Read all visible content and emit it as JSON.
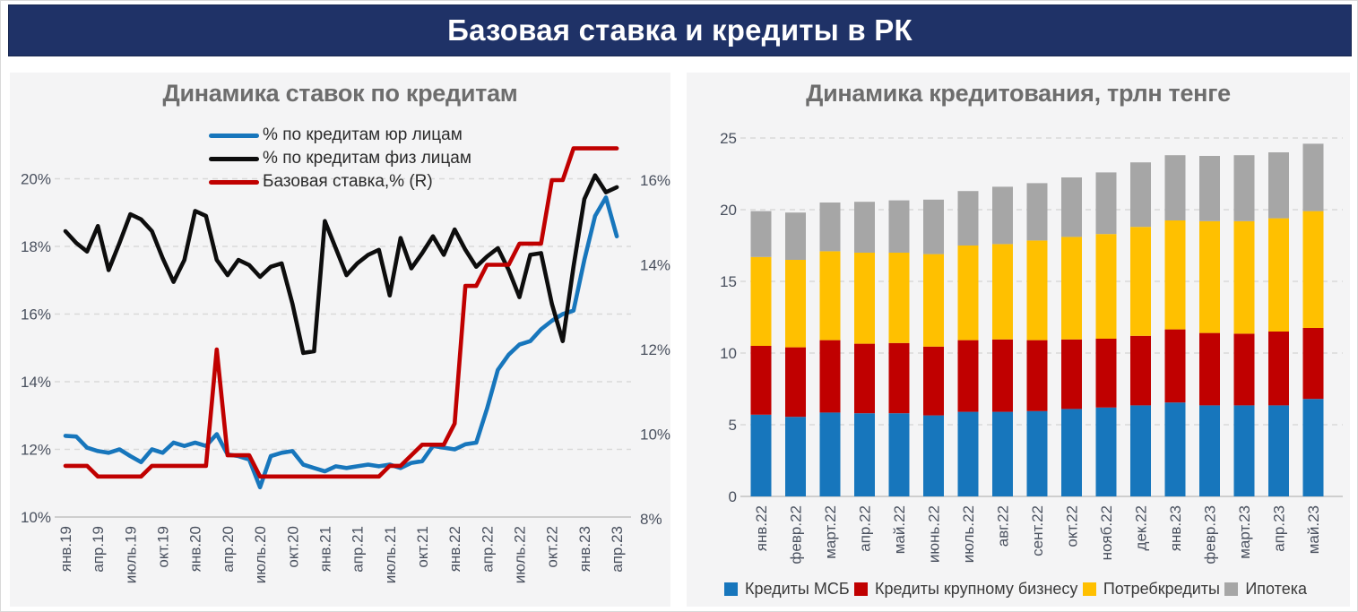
{
  "header": {
    "title": "Базовая ставка и кредиты в РК"
  },
  "chart_data": [
    {
      "type": "line",
      "title": "Динамика ставок по кредитам",
      "legend_position": "top-center",
      "x_tick_every": 3,
      "x_tick_labels": [
        "янв.19",
        "апр.19",
        "июль.19",
        "окт.19",
        "янв.20",
        "апр.20",
        "июль.20",
        "окт.20",
        "янв.21",
        "апр.21",
        "июль.21",
        "окт.21",
        "янв.22",
        "апр.22",
        "июль.22",
        "окт.22",
        "янв.23",
        "апр.23"
      ],
      "left_axis": {
        "range": [
          10,
          20.7
        ],
        "gridlines": [
          12,
          14,
          16,
          18,
          20
        ],
        "ticks": [
          {
            "label": "20%",
            "value": 20
          },
          {
            "label": "18%",
            "value": 18
          },
          {
            "label": "16%",
            "value": 16
          },
          {
            "label": "14%",
            "value": 14
          },
          {
            "label": "12%",
            "value": 12
          },
          {
            "label": "10%",
            "value": 10
          }
        ]
      },
      "right_axis": {
        "range": [
          8,
          16.9
        ],
        "ticks": [
          {
            "label": "16%",
            "value": 16
          },
          {
            "label": "14%",
            "value": 14
          },
          {
            "label": "12%",
            "value": 12
          },
          {
            "label": "10%",
            "value": 10
          },
          {
            "label": "8%",
            "value": 8
          }
        ]
      },
      "series": [
        {
          "name": "% по кредитам юр лицам",
          "color": "#1776bc",
          "axis": "left",
          "values": [
            12.4,
            12.38,
            12.05,
            11.95,
            11.9,
            12.0,
            11.8,
            11.62,
            12.0,
            11.9,
            12.2,
            12.1,
            12.2,
            12.1,
            12.45,
            11.85,
            11.8,
            11.7,
            10.88,
            11.8,
            11.9,
            11.95,
            11.55,
            11.45,
            11.35,
            11.5,
            11.45,
            11.5,
            11.55,
            11.5,
            11.55,
            11.45,
            11.6,
            11.65,
            12.1,
            12.05,
            12.0,
            12.15,
            12.2,
            13.2,
            14.35,
            14.8,
            15.1,
            15.2,
            15.55,
            15.8,
            16.0,
            16.1,
            17.6,
            18.9,
            19.45,
            18.3
          ]
        },
        {
          "name": "% по кредитам физ лицам",
          "color": "#0d0d0d",
          "axis": "left",
          "values": [
            18.45,
            18.1,
            17.85,
            18.6,
            17.3,
            18.1,
            18.95,
            18.8,
            18.45,
            17.65,
            16.95,
            17.6,
            19.05,
            18.9,
            17.6,
            17.15,
            17.6,
            17.45,
            17.1,
            17.4,
            17.5,
            16.3,
            14.85,
            14.9,
            18.75,
            17.95,
            17.15,
            17.5,
            17.75,
            17.9,
            16.55,
            18.25,
            17.35,
            17.8,
            18.3,
            17.75,
            18.5,
            17.9,
            17.4,
            17.7,
            17.95,
            17.3,
            16.5,
            17.75,
            17.8,
            16.3,
            15.2,
            17.4,
            19.4,
            20.1,
            19.6,
            19.75
          ]
        },
        {
          "name": "Базовая ставка,% (R)",
          "color": "#c00000",
          "axis": "right",
          "values": [
            9.25,
            9.25,
            9.25,
            9.0,
            9.0,
            9.0,
            9.0,
            9.0,
            9.25,
            9.25,
            9.25,
            9.25,
            9.25,
            9.25,
            12.0,
            9.5,
            9.5,
            9.5,
            9.0,
            9.0,
            9.0,
            9.0,
            9.0,
            9.0,
            9.0,
            9.0,
            9.0,
            9.0,
            9.0,
            9.0,
            9.25,
            9.25,
            9.5,
            9.75,
            9.75,
            9.75,
            10.25,
            13.5,
            13.5,
            14.0,
            14.0,
            14.0,
            14.5,
            14.5,
            14.5,
            16.0,
            16.0,
            16.75,
            16.75,
            16.75,
            16.75,
            16.75
          ]
        }
      ]
    },
    {
      "type": "bar",
      "stacked": true,
      "title": "Динамика кредитования, трлн тенге",
      "legend_position": "bottom",
      "categories": [
        "янв.22",
        "февр.22",
        "март.22",
        "апр.22",
        "май.22",
        "июнь.22",
        "июль.22",
        "авг.22",
        "сент.22",
        "окт.22",
        "нояб.22",
        "дек.22",
        "янв.23",
        "февр.23",
        "март.23",
        "апр.23",
        "май.23"
      ],
      "y_axis": {
        "range": [
          0,
          26
        ],
        "gridlines": [
          5,
          10,
          15,
          20,
          25
        ],
        "ticks": [
          {
            "label": "25",
            "value": 25
          },
          {
            "label": "20",
            "value": 20
          },
          {
            "label": "15",
            "value": 15
          },
          {
            "label": "10",
            "value": 10
          },
          {
            "label": "5",
            "value": 5
          },
          {
            "label": "0",
            "value": 0
          }
        ]
      },
      "series": [
        {
          "name": "Кредиты МСБ",
          "color": "#1776bc",
          "values": [
            5.7,
            5.55,
            5.85,
            5.8,
            5.8,
            5.65,
            5.9,
            5.9,
            5.95,
            6.1,
            6.2,
            6.35,
            6.55,
            6.35,
            6.35,
            6.35,
            6.8
          ]
        },
        {
          "name": "Кредиты крупному бизнесу",
          "color": "#c00000",
          "values": [
            4.8,
            4.85,
            5.05,
            4.85,
            4.9,
            4.8,
            5.0,
            5.05,
            4.95,
            4.85,
            4.8,
            4.85,
            5.1,
            5.05,
            5.0,
            5.15,
            4.95
          ]
        },
        {
          "name": "Потребкредиты",
          "color": "#ffc000",
          "values": [
            6.2,
            6.1,
            6.2,
            6.35,
            6.3,
            6.45,
            6.6,
            6.65,
            6.95,
            7.15,
            7.3,
            7.6,
            7.6,
            7.8,
            7.85,
            7.9,
            8.15
          ]
        },
        {
          "name": "Ипотека",
          "color": "#a6a6a6",
          "values": [
            3.2,
            3.3,
            3.4,
            3.55,
            3.65,
            3.8,
            3.8,
            4.0,
            4.0,
            4.15,
            4.3,
            4.5,
            4.55,
            4.55,
            4.6,
            4.6,
            4.7
          ]
        }
      ]
    }
  ]
}
